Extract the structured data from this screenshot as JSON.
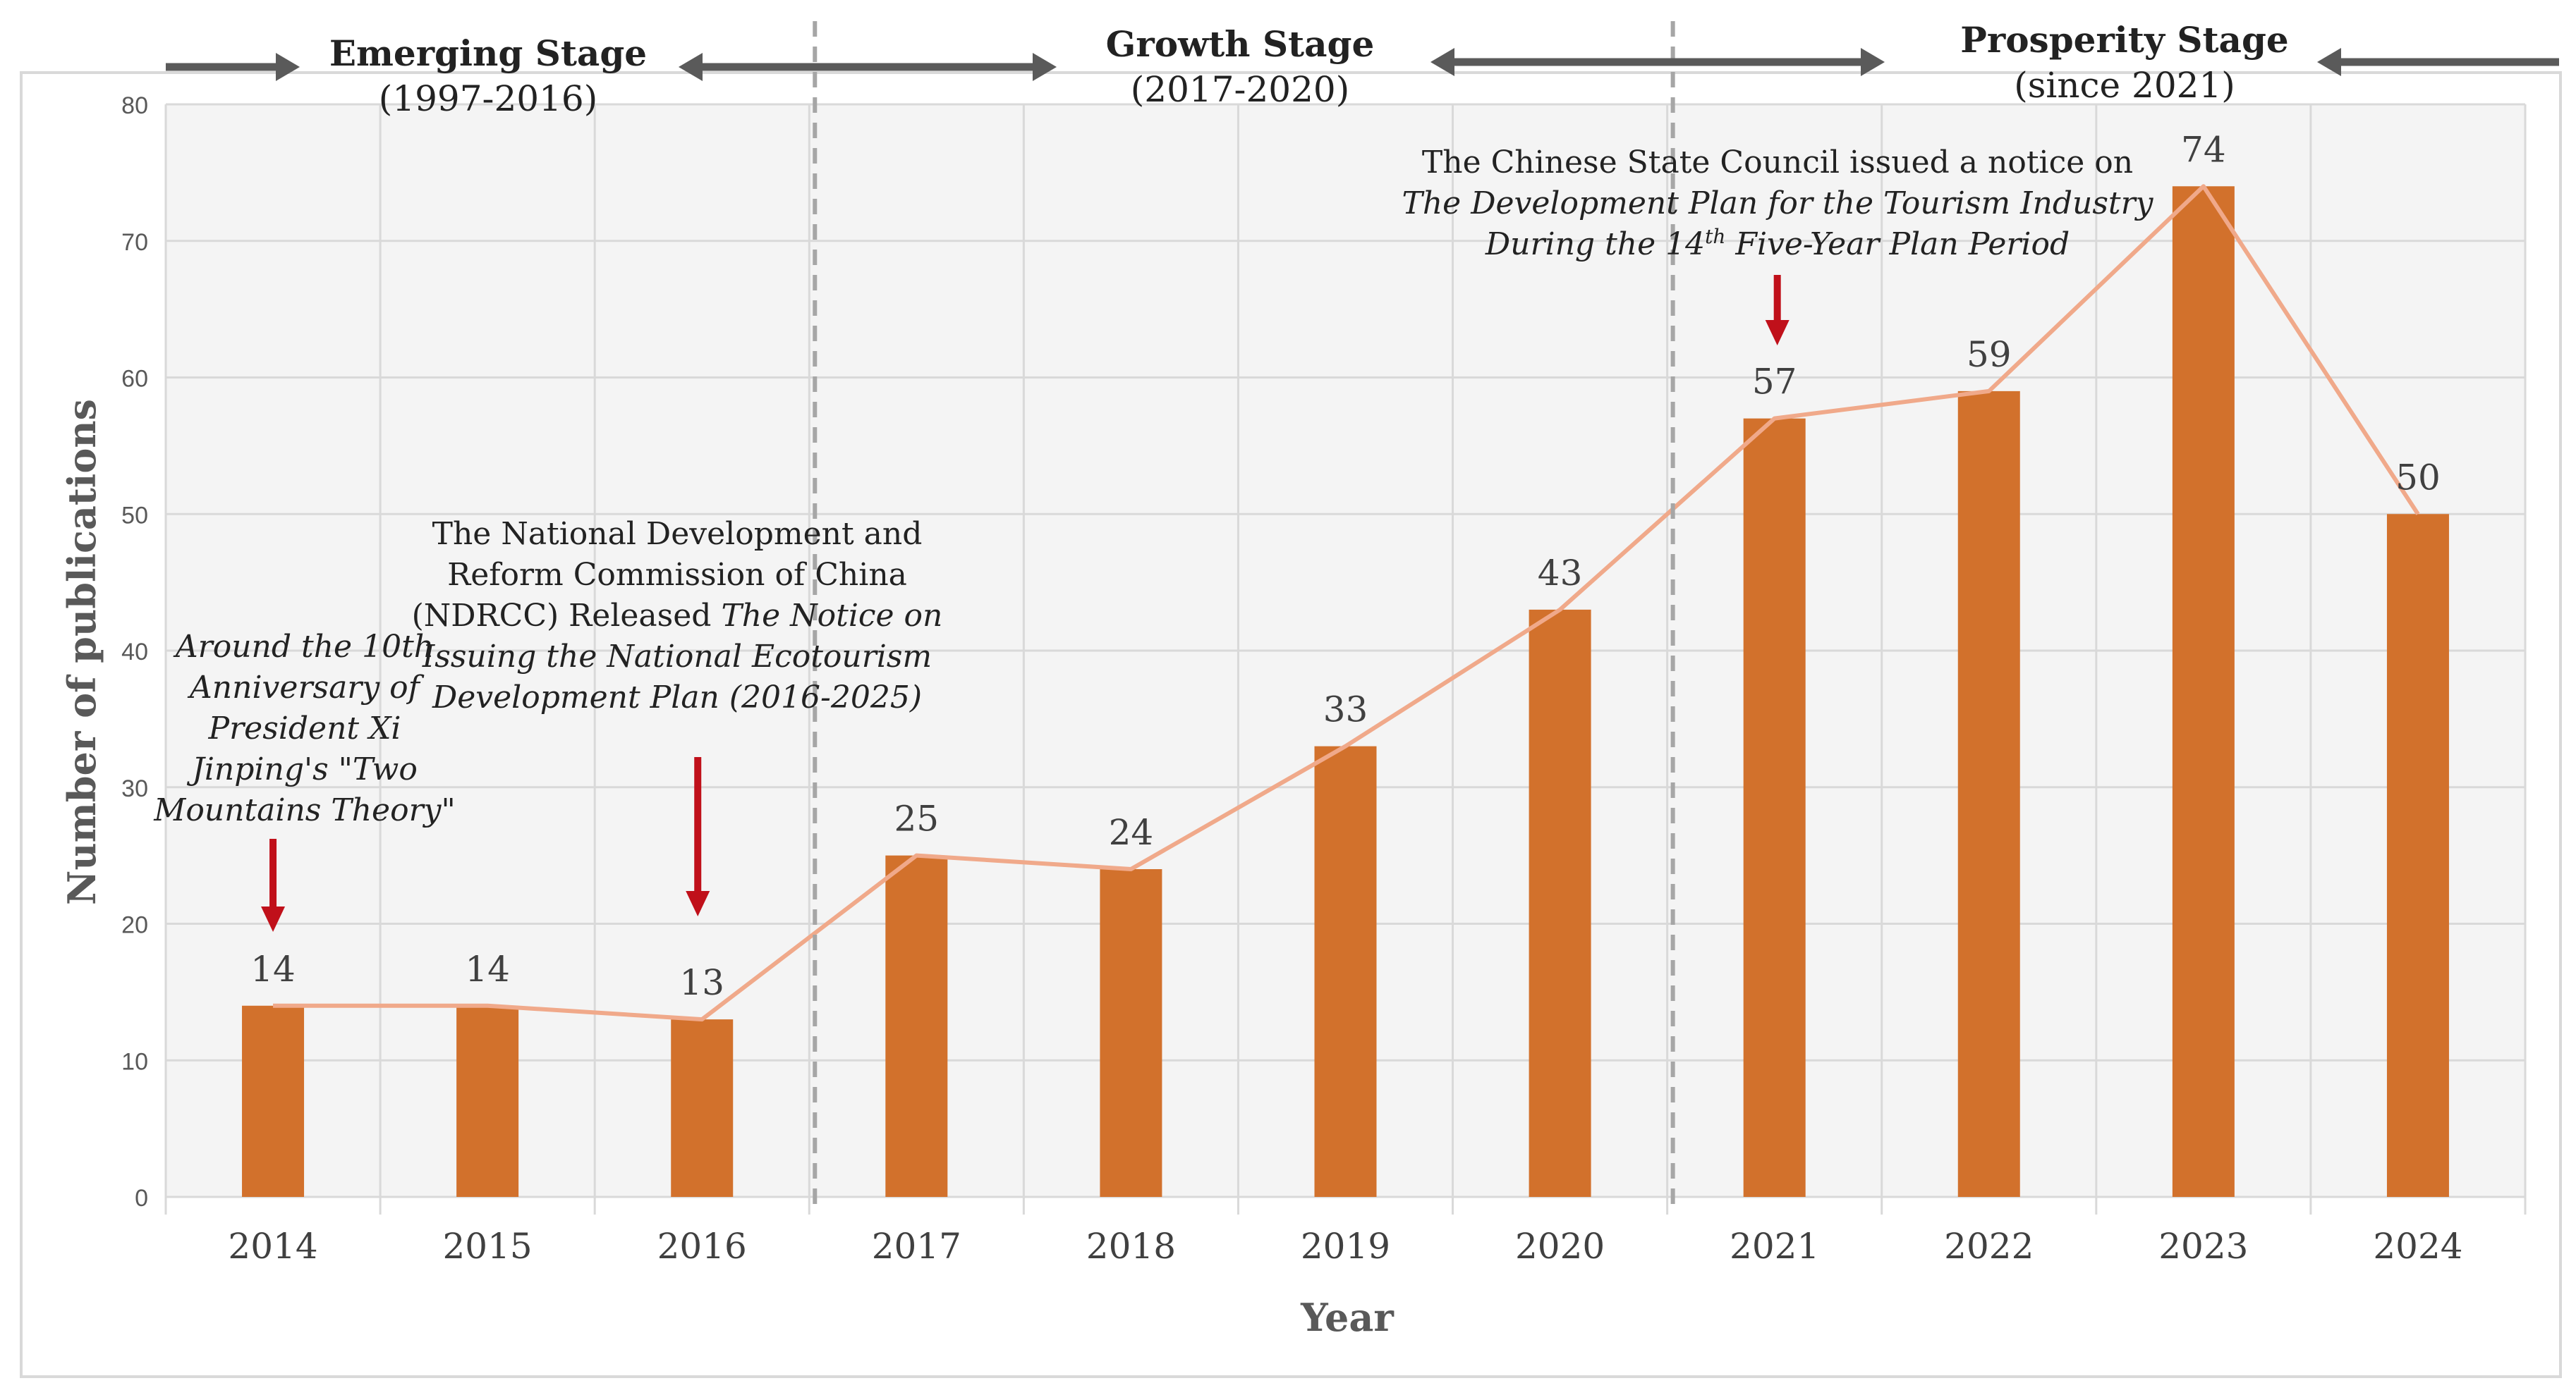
{
  "chart_data": {
    "type": "bar",
    "categories": [
      "2014",
      "2015",
      "2016",
      "2017",
      "2018",
      "2019",
      "2020",
      "2021",
      "2022",
      "2023",
      "2024"
    ],
    "values": [
      14,
      14,
      13,
      25,
      24,
      33,
      43,
      57,
      59,
      74,
      50
    ],
    "overlay_line": true,
    "xlabel": "Year",
    "ylabel": "Number of publications",
    "ylim": [
      0,
      80
    ],
    "yticks": [
      0,
      10,
      20,
      30,
      40,
      50,
      60,
      70,
      80
    ],
    "grid": true,
    "colors": {
      "bar": "#d2712c",
      "line": "#f0a98a",
      "arrow": "#c0101a",
      "stage_arrow": "#5a5a5a",
      "divider": "#a6a6a6",
      "grid": "#d9d9d9"
    },
    "stages": [
      {
        "name": "Emerging Stage",
        "period": "(1997-2016)"
      },
      {
        "name": "Growth Stage",
        "period": "(2017-2020)"
      },
      {
        "name": "Prosperity Stage",
        "period": "(since 2021)"
      }
    ],
    "annotations": {
      "twomountains": {
        "lines": [
          "Around the 10th",
          "Anniversary of",
          "President Xi",
          "Jinping's \"Two",
          "Mountains Theory\""
        ],
        "year": "2014"
      },
      "ndrcc": {
        "lines_plain": [
          "The National Development and",
          "Reform Commission of China"
        ],
        "line3_plain": "(NDRCC) Released ",
        "line3_italic": "The Notice on",
        "lines_italic": [
          "Issuing the National Ecotourism",
          "Development Plan (2016-2025)"
        ],
        "year": "2016"
      },
      "statecouncil": {
        "line1": "The Chinese State Council issued a notice on",
        "line2": "The Development Plan for the Tourism Industry",
        "line3a": "During the 14",
        "line3sup": "th",
        "line3b": " Five-Year Plan Period",
        "year": "2021"
      }
    }
  }
}
